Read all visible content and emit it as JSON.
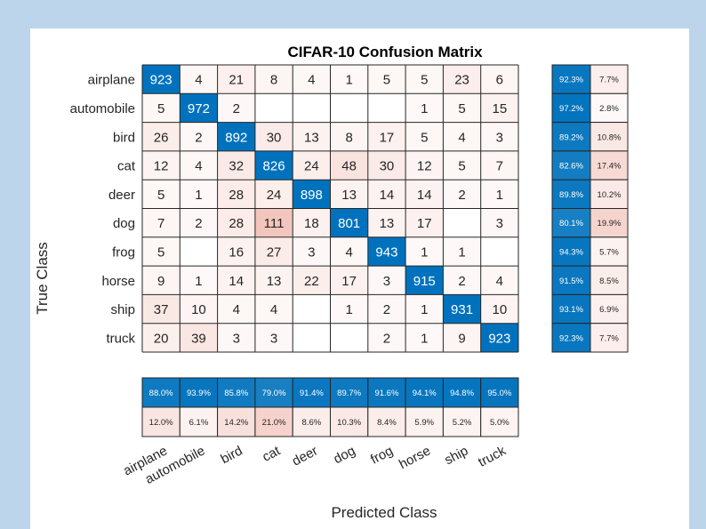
{
  "chart_data": {
    "type": "heatmap",
    "title": "CIFAR-10 Confusion Matrix",
    "xlabel": "Predicted Class",
    "ylabel": "True Class",
    "classes": [
      "airplane",
      "automobile",
      "bird",
      "cat",
      "deer",
      "dog",
      "frog",
      "horse",
      "ship",
      "truck"
    ],
    "matrix": [
      [
        923,
        4,
        21,
        8,
        4,
        1,
        5,
        5,
        23,
        6
      ],
      [
        5,
        972,
        2,
        0,
        0,
        0,
        0,
        1,
        5,
        15
      ],
      [
        26,
        2,
        892,
        30,
        13,
        8,
        17,
        5,
        4,
        3
      ],
      [
        12,
        4,
        32,
        826,
        24,
        48,
        30,
        12,
        5,
        7
      ],
      [
        5,
        1,
        28,
        24,
        898,
        13,
        14,
        14,
        2,
        1
      ],
      [
        7,
        2,
        28,
        111,
        18,
        801,
        13,
        17,
        0,
        3
      ],
      [
        5,
        0,
        16,
        27,
        3,
        4,
        943,
        1,
        1,
        0
      ],
      [
        9,
        1,
        14,
        13,
        22,
        17,
        3,
        915,
        2,
        4
      ],
      [
        37,
        10,
        4,
        4,
        0,
        1,
        2,
        1,
        931,
        10
      ],
      [
        20,
        39,
        3,
        3,
        0,
        0,
        2,
        1,
        9,
        923
      ]
    ],
    "row_summary": {
      "correct": [
        "92.3%",
        "97.2%",
        "89.2%",
        "82.6%",
        "89.8%",
        "80.1%",
        "94.3%",
        "91.5%",
        "93.1%",
        "92.3%"
      ],
      "incorrect": [
        "7.7%",
        "2.8%",
        "10.8%",
        "17.4%",
        "10.2%",
        "19.9%",
        "5.7%",
        "8.5%",
        "6.9%",
        "7.7%"
      ]
    },
    "column_summary": {
      "correct": [
        "88.0%",
        "93.9%",
        "85.8%",
        "79.0%",
        "91.4%",
        "89.7%",
        "91.6%",
        "94.1%",
        "94.8%",
        "95.0%"
      ],
      "incorrect": [
        "12.0%",
        "6.1%",
        "14.2%",
        "21.0%",
        "8.6%",
        "10.3%",
        "8.4%",
        "5.9%",
        "5.2%",
        "5.0%"
      ]
    },
    "colors": {
      "diagonal": "#0072bd",
      "off_diagonal_max": "#d9533a",
      "background": "#bcd5ea"
    }
  }
}
